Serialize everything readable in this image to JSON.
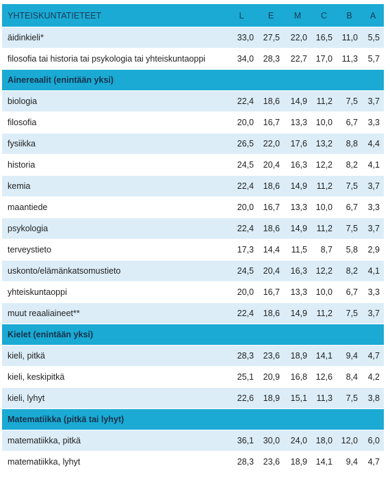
{
  "header": {
    "title": "YHTEISKUNTATIETEET",
    "grades": [
      "L",
      "E",
      "M",
      "C",
      "B",
      "A"
    ]
  },
  "rows": [
    {
      "type": "data",
      "label": "äidinkieli*",
      "values": [
        "33,0",
        "27,5",
        "22,0",
        "16,5",
        "11,0",
        "5,5"
      ]
    },
    {
      "type": "data",
      "label": "filosofia tai historia tai psykologia tai yhteiskuntaoppi",
      "values": [
        "34,0",
        "28,3",
        "22,7",
        "17,0",
        "11,3",
        "5,7"
      ]
    },
    {
      "type": "section",
      "label": "Ainereaalit (enintään yksi)"
    },
    {
      "type": "data",
      "label": "biologia",
      "values": [
        "22,4",
        "18,6",
        "14,9",
        "11,2",
        "7,5",
        "3,7"
      ]
    },
    {
      "type": "data",
      "label": "filosofia",
      "values": [
        "20,0",
        "16,7",
        "13,3",
        "10,0",
        "6,7",
        "3,3"
      ]
    },
    {
      "type": "data",
      "label": "fysiikka",
      "values": [
        "26,5",
        "22,0",
        "17,6",
        "13,2",
        "8,8",
        "4,4"
      ]
    },
    {
      "type": "data",
      "label": "historia",
      "values": [
        "24,5",
        "20,4",
        "16,3",
        "12,2",
        "8,2",
        "4,1"
      ]
    },
    {
      "type": "data",
      "label": "kemia",
      "values": [
        "22,4",
        "18,6",
        "14,9",
        "11,2",
        "7,5",
        "3,7"
      ]
    },
    {
      "type": "data",
      "label": "maantiede",
      "values": [
        "20,0",
        "16,7",
        "13,3",
        "10,0",
        "6,7",
        "3,3"
      ]
    },
    {
      "type": "data",
      "label": "psykologia",
      "values": [
        "22,4",
        "18,6",
        "14,9",
        "11,2",
        "7,5",
        "3,7"
      ]
    },
    {
      "type": "data",
      "label": "terveystieto",
      "values": [
        "17,3",
        "14,4",
        "11,5",
        "8,7",
        "5,8",
        "2,9"
      ]
    },
    {
      "type": "data",
      "label": "uskonto/elämänkatsomustieto",
      "values": [
        "24,5",
        "20,4",
        "16,3",
        "12,2",
        "8,2",
        "4,1"
      ]
    },
    {
      "type": "data",
      "label": "yhteiskuntaoppi",
      "values": [
        "20,0",
        "16,7",
        "13,3",
        "10,0",
        "6,7",
        "3,3"
      ]
    },
    {
      "type": "data",
      "label": "muut reaaliaineet**",
      "values": [
        "22,4",
        "18,6",
        "14,9",
        "11,2",
        "7,5",
        "3,7"
      ]
    },
    {
      "type": "section",
      "label": "Kielet (enintään yksi)"
    },
    {
      "type": "data",
      "label": "kieli, pitkä",
      "values": [
        "28,3",
        "23,6",
        "18,9",
        "14,1",
        "9,4",
        "4,7"
      ]
    },
    {
      "type": "data",
      "label": "kieli, keskipitkä",
      "values": [
        "25,1",
        "20,9",
        "16,8",
        "12,6",
        "8,4",
        "4,2"
      ]
    },
    {
      "type": "data",
      "label": "kieli, lyhyt",
      "values": [
        "22,6",
        "18,9",
        "15,1",
        "11,3",
        "7,5",
        "3,8"
      ]
    },
    {
      "type": "section",
      "label": "Matematiikka (pitkä tai lyhyt)"
    },
    {
      "type": "data",
      "label": "matematiikka, pitkä",
      "values": [
        "36,1",
        "30,0",
        "24,0",
        "18,0",
        "12,0",
        "6,0"
      ]
    },
    {
      "type": "data",
      "label": "matematiikka, lyhyt",
      "values": [
        "28,3",
        "23,6",
        "18,9",
        "14,1",
        "9,4",
        "4,7"
      ]
    }
  ]
}
